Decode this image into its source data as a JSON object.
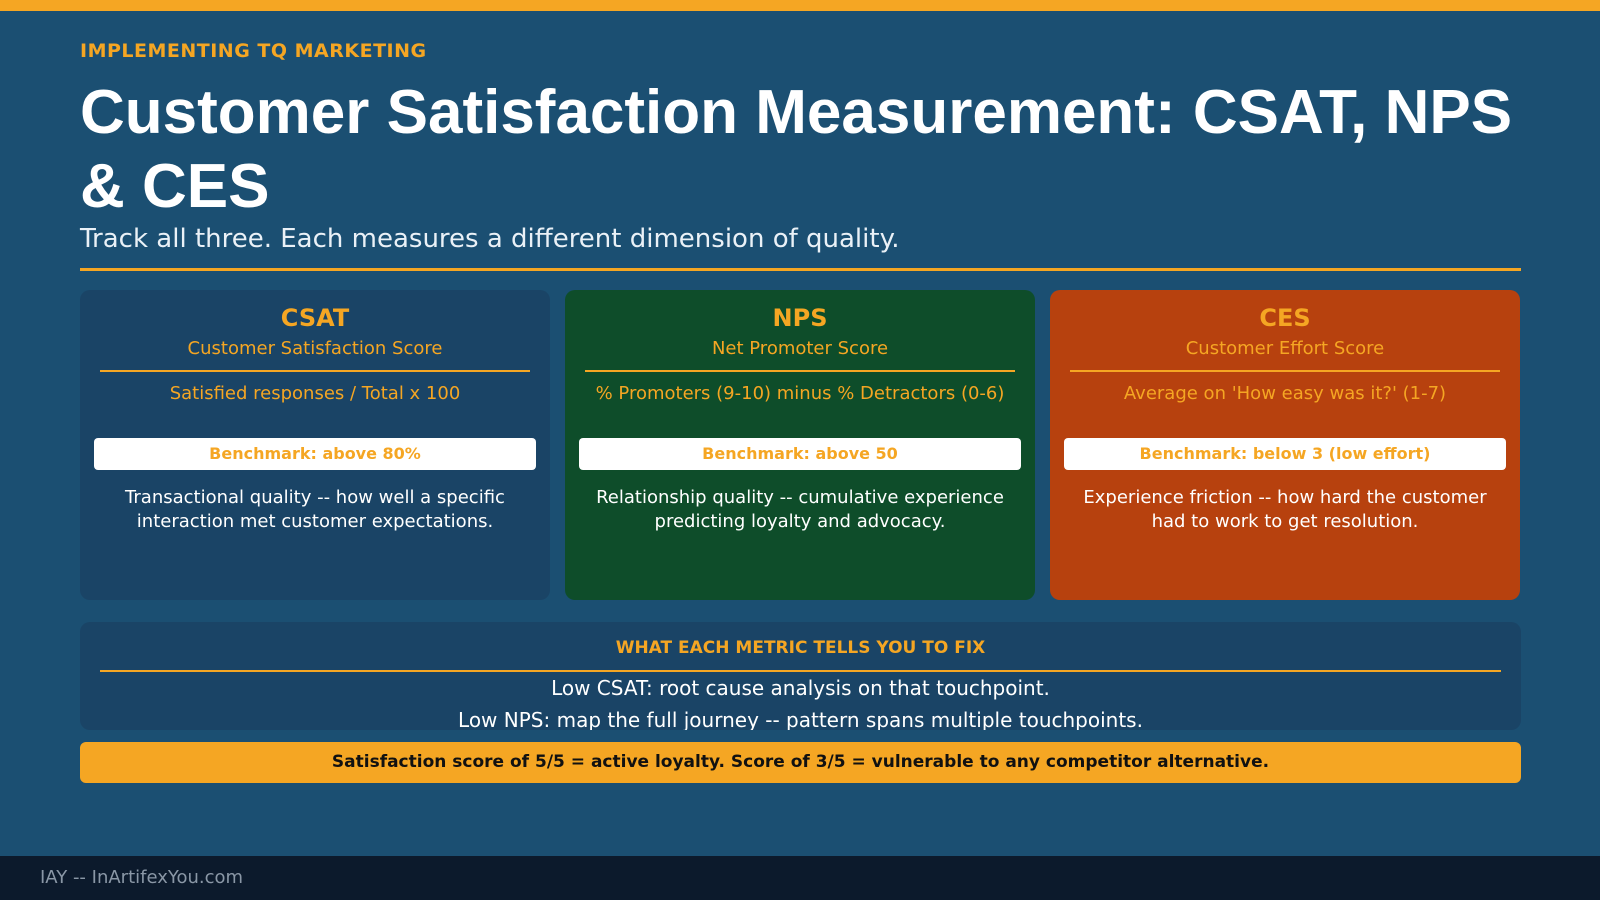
{
  "slide": {
    "eyebrow": "IMPLEMENTING TQ MARKETING",
    "title": "Customer Satisfaction Measurement: CSAT, NPS & CES",
    "subtitle": "Track all three. Each measures a different dimension of quality."
  },
  "cards": [
    {
      "abbr": "CSAT",
      "name": "Customer Satisfaction Score",
      "formula": "Satisfied responses / Total x 100",
      "benchmark": "Benchmark: above 80%",
      "description": "Transactional quality -- how well a specific interaction met customer expectations.",
      "color": "#1a4466"
    },
    {
      "abbr": "NPS",
      "name": "Net Promoter Score",
      "formula": "% Promoters (9-10) minus % Detractors (0-6)",
      "benchmark": "Benchmark: above 50",
      "description": "Relationship quality -- cumulative experience predicting loyalty and advocacy.",
      "color": "#0e4d2a"
    },
    {
      "abbr": "CES",
      "name": "Customer Effort Score",
      "formula": "Average on 'How easy was it?' (1-7)",
      "benchmark": "Benchmark: below 3 (low effort)",
      "description": "Experience friction -- how hard the customer had to work to get resolution.",
      "color": "#b7410e"
    }
  ],
  "fix_panel": {
    "heading": "WHAT EACH METRIC TELLS YOU TO FIX",
    "lines": [
      "Low CSAT: root cause analysis on that touchpoint.",
      "Low NPS: map the full journey -- pattern spans multiple touchpoints."
    ]
  },
  "callout": "Satisfaction score of 5/5 = active loyalty. Score of 3/5 = vulnerable to any competitor alternative.",
  "footer": "IAY -- InArtifexYou.com",
  "colors": {
    "accent": "#f5a623",
    "background": "#1b4f72",
    "footer": "#0c1a2c"
  }
}
